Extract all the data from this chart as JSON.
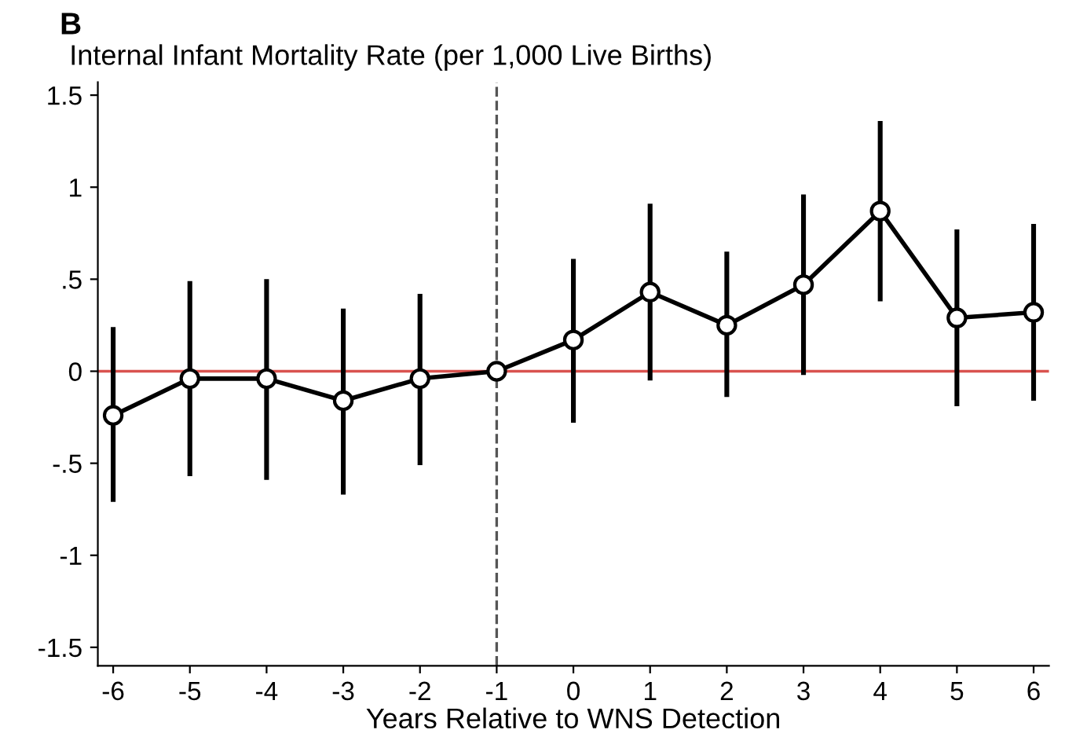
{
  "chart_data": {
    "type": "line",
    "title": "Internal Infant Mortality Rate (per 1,000 Live Births)",
    "xlabel": "Years Relative to WNS Detection",
    "annotations": [
      "B"
    ],
    "x": [
      -6,
      -5,
      -4,
      -3,
      -2,
      -1,
      0,
      1,
      2,
      3,
      4,
      5,
      6
    ],
    "series": [
      {
        "color": "#000000",
        "values": [
          -0.24,
          -0.04,
          -0.04,
          -0.16,
          -0.04,
          0,
          0.17,
          0.43,
          0.25,
          0.47,
          0.87,
          0.29,
          0.32
        ],
        "errors": [
          [
            -0.71,
            0.24
          ],
          [
            -0.57,
            0.49
          ],
          [
            -0.59,
            0.5
          ],
          [
            -0.67,
            0.34
          ],
          [
            -0.51,
            0.42
          ],
          null,
          [
            -0.28,
            0.61
          ],
          [
            -0.05,
            0.91
          ],
          [
            -0.14,
            0.65
          ],
          [
            -0.02,
            0.96
          ],
          [
            0.38,
            1.36
          ],
          [
            -0.19,
            0.77
          ],
          [
            -0.16,
            0.8
          ]
        ]
      }
    ],
    "marker": "circle",
    "line_style": "solid",
    "grid": false,
    "legend": false,
    "xlim": [
      -6.2,
      6.2
    ],
    "xticks": [
      -6,
      -5,
      -4,
      -3,
      -2,
      -1,
      0,
      1,
      2,
      3,
      4,
      5,
      6
    ],
    "ylim": [
      -1.6,
      1.57
    ],
    "yticks": [
      {
        "value": -1.5,
        "label": "-1.5"
      },
      {
        "value": -1,
        "label": "-1"
      },
      {
        "value": -0.5,
        "label": "-.5"
      },
      {
        "value": 0,
        "label": "0"
      },
      {
        "value": 0.5,
        "label": ".5"
      },
      {
        "value": 1,
        "label": "1"
      },
      {
        "value": 1.5,
        "label": "1.5"
      }
    ],
    "ref_lines": [
      {
        "axis": "y",
        "value": 0,
        "color": "#d9534f",
        "line_style": "solid"
      },
      {
        "axis": "x",
        "value": -1,
        "color": "#555555",
        "line_style": "dashed"
      }
    ]
  }
}
